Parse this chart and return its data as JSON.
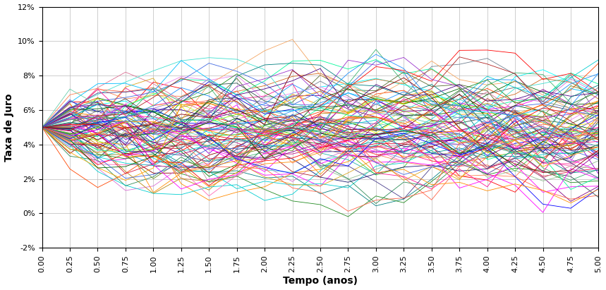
{
  "title": "",
  "xlabel": "Tempo (anos)",
  "ylabel": "Taxa de Juro",
  "xlim": [
    0.0,
    5.0
  ],
  "ylim": [
    -0.02,
    0.12
  ],
  "yticks": [
    -0.02,
    0.0,
    0.02,
    0.04,
    0.06,
    0.08,
    0.1,
    0.12
  ],
  "xtick_step": 0.25,
  "n_steps": 21,
  "n_paths": 100,
  "r0": 0.05,
  "kappa": 0.5,
  "theta": 0.05,
  "sigma": 0.018,
  "dt": 0.25,
  "seed": 7,
  "background_color": "#ffffff",
  "grid_color": "#bbbbbb",
  "xlabel_fontsize": 10,
  "ylabel_fontsize": 10,
  "tick_fontsize": 8,
  "figure_width": 8.59,
  "figure_height": 4.11,
  "dpi": 100,
  "line_width": 0.6,
  "line_alpha": 1.0
}
